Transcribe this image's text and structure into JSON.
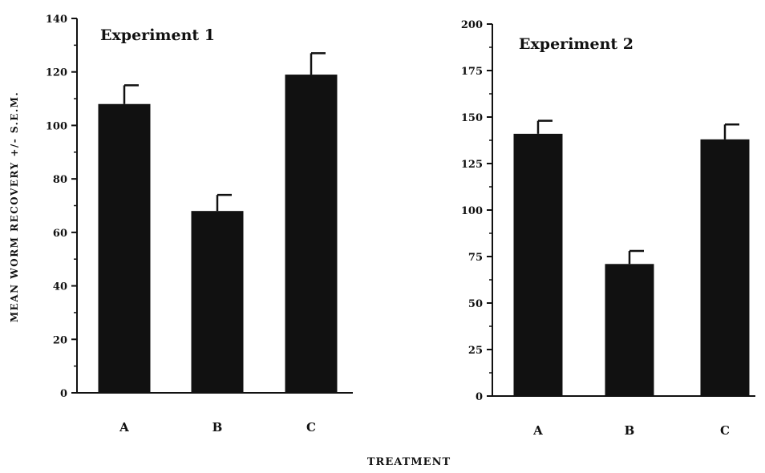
{
  "figure": {
    "ylabel": "MEAN WORM RECOVERY +/- S.E.M.",
    "xlabel": "TREATMENT",
    "bar_color": "#111111",
    "axis_color": "#111111"
  },
  "chart_data": [
    {
      "type": "bar",
      "title": "Experiment 1",
      "categories": [
        "A",
        "B",
        "C"
      ],
      "values": [
        108,
        68,
        119
      ],
      "errors": [
        7,
        6,
        8
      ],
      "ylim": [
        0,
        140
      ],
      "yticks": [
        0,
        20,
        40,
        60,
        80,
        100,
        120,
        140
      ],
      "ytick_labels": [
        "0",
        "20",
        "40",
        "60",
        "80",
        "100",
        "120",
        "140"
      ],
      "grid": false,
      "error_bars": "upper"
    },
    {
      "type": "bar",
      "title": "Experiment 2",
      "categories": [
        "A",
        "B",
        "C"
      ],
      "values": [
        141,
        71,
        138
      ],
      "errors": [
        7,
        7,
        8
      ],
      "ylim": [
        0,
        200
      ],
      "yticks": [
        0,
        25,
        50,
        75,
        100,
        125,
        150,
        175,
        200
      ],
      "ytick_labels": [
        "0",
        "25",
        "50",
        "75",
        "100",
        "125",
        "150",
        "175",
        "200"
      ],
      "grid": false,
      "error_bars": "upper"
    }
  ]
}
